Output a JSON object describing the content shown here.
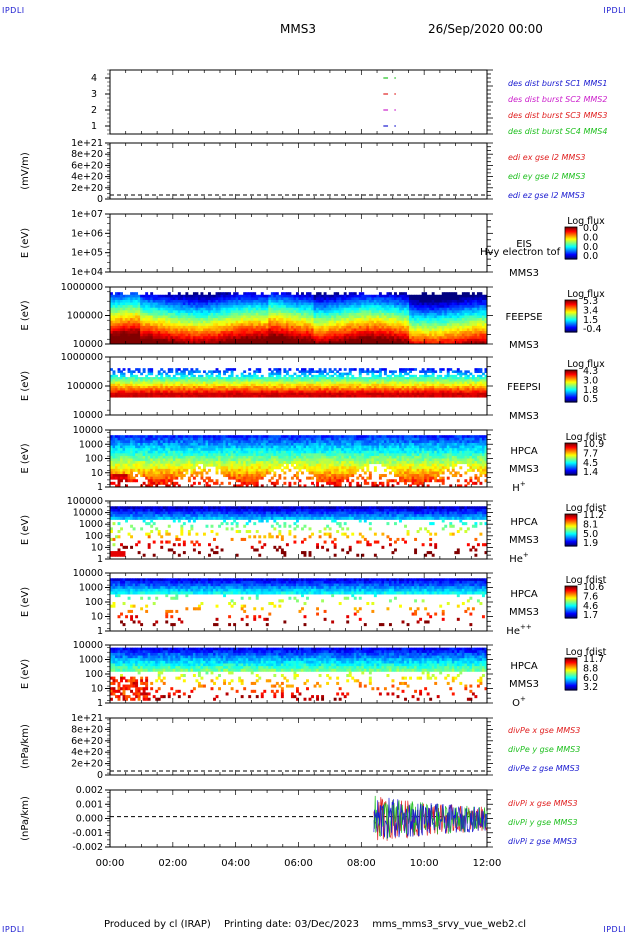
{
  "corner_marks": {
    "top_left": "IPDLI",
    "top_right": "IPDLI",
    "bottom_left": "IPDLI",
    "bottom_right": "IPDLI"
  },
  "header": {
    "mission": "MMS3",
    "date": "26/Sep/2020 00:00"
  },
  "footer": {
    "producer": "Produced by cl (IRAP)",
    "printing": "Printing date: 03/Dec/2023",
    "file": "mms_mms3_srvy_vue_web2.cl"
  },
  "x_axis": {
    "range_hours": [
      0,
      12
    ],
    "ticks": [
      "00:00",
      "02:00",
      "04:00",
      "06:00",
      "08:00",
      "10:00",
      "12:00"
    ]
  },
  "colors": {
    "mms1": "#1a1ad0",
    "mms2": "#cc22cc",
    "mms3": "#e02020",
    "mms4": "#20c020",
    "x": "#e02020",
    "y": "#20c020",
    "z": "#1a1ad0"
  },
  "chart_data": [
    {
      "type": "line",
      "id": "burst",
      "yticks": [
        "4",
        "3",
        "2",
        "1"
      ],
      "ylim": [
        0.5,
        4.5
      ],
      "legend": [
        "des dist burst SC1 MMS1",
        "des dist burst SC2 MMS2",
        "des dist burst SC3 MMS3",
        "des dist burst SC4 MMS4"
      ],
      "segments": [
        {
          "sc": 4,
          "x": [
            8.7,
            8.85
          ]
        },
        {
          "sc": 4,
          "x": [
            9.05,
            9.1
          ]
        },
        {
          "sc": 3,
          "x": [
            8.7,
            8.85
          ]
        },
        {
          "sc": 3,
          "x": [
            9.05,
            9.1
          ]
        },
        {
          "sc": 2,
          "x": [
            8.7,
            8.85
          ]
        },
        {
          "sc": 2,
          "x": [
            9.05,
            9.1
          ]
        },
        {
          "sc": 1,
          "x": [
            8.7,
            8.85
          ]
        },
        {
          "sc": 1,
          "x": [
            9.05,
            9.1
          ]
        }
      ]
    },
    {
      "type": "line",
      "id": "edi",
      "ylabel": "(mV/m)",
      "yticks": [
        "1e+21",
        "8e+20",
        "6e+20",
        "4e+20",
        "2e+20",
        "0"
      ],
      "ylim": [
        0,
        1e+21
      ],
      "legend": [
        "edi ex gse l2 MMS3",
        "edi ey gse l2 MMS3",
        "edi ez gse l2 MMS3"
      ],
      "zero_line": true
    },
    {
      "type": "heatmap",
      "id": "eis",
      "ylabel": "E (eV)",
      "yticks": [
        "1e+07",
        "1e+06",
        "1e+05",
        "1e+04"
      ],
      "labels": [
        "EIS",
        "MMS3"
      ],
      "overlay_text": "Hvy electron tof",
      "colorbar": {
        "title": "Log flux",
        "ticks": [
          "0.0",
          "0.0",
          "0.0",
          "0.0"
        ]
      },
      "empty": true
    },
    {
      "type": "heatmap",
      "id": "feepse",
      "ylabel": "E (eV)",
      "yticks": [
        "1000000",
        "100000",
        "10000"
      ],
      "labels": [
        "FEEPSE",
        "MMS3"
      ],
      "colorbar": {
        "title": "Log flux",
        "ticks": [
          "5.3",
          "3.4",
          "1.5",
          "-0.4"
        ]
      }
    },
    {
      "type": "heatmap",
      "id": "feepsi",
      "ylabel": "E (eV)",
      "yticks": [
        "1000000",
        "100000",
        "10000"
      ],
      "labels": [
        "FEEPSI",
        "MMS3"
      ],
      "colorbar": {
        "title": "Log flux",
        "ticks": [
          "4.3",
          "3.0",
          "1.8",
          "0.5"
        ]
      }
    },
    {
      "type": "heatmap",
      "id": "hpca_h",
      "ylabel": "E (eV)",
      "yticks": [
        "10000",
        "1000",
        "100",
        "10",
        "1"
      ],
      "labels": [
        "HPCA",
        "MMS3"
      ],
      "species": "H",
      "charge": "+",
      "colorbar": {
        "title": "Log fdist",
        "ticks": [
          "10.9",
          "7.7",
          "4.5",
          "1.4"
        ]
      }
    },
    {
      "type": "heatmap",
      "id": "hpca_he",
      "ylabel": "E (eV)",
      "yticks": [
        "100000",
        "10000",
        "1000",
        "100",
        "10",
        "1"
      ],
      "labels": [
        "HPCA",
        "MMS3"
      ],
      "species": "He",
      "charge": "+",
      "colorbar": {
        "title": "Log fdist",
        "ticks": [
          "11.2",
          "8.1",
          "5.0",
          "1.9"
        ]
      }
    },
    {
      "type": "heatmap",
      "id": "hpca_hepp",
      "ylabel": "E (eV)",
      "yticks": [
        "10000",
        "1000",
        "100",
        "10",
        "1"
      ],
      "labels": [
        "HPCA",
        "MMS3"
      ],
      "species": "He",
      "charge": "++",
      "colorbar": {
        "title": "Log fdist",
        "ticks": [
          "10.6",
          "7.6",
          "4.6",
          "1.7"
        ]
      }
    },
    {
      "type": "heatmap",
      "id": "hpca_o",
      "ylabel": "E (eV)",
      "yticks": [
        "10000",
        "1000",
        "100",
        "10",
        "1"
      ],
      "labels": [
        "HPCA",
        "MMS3"
      ],
      "species": "O",
      "charge": "+",
      "colorbar": {
        "title": "Log fdist",
        "ticks": [
          "11.7",
          "8.8",
          "6.0",
          "3.2"
        ]
      }
    },
    {
      "type": "line",
      "id": "divpe",
      "ylabel": "(nPa/km)",
      "yticks": [
        "1e+21",
        "8e+20",
        "6e+20",
        "4e+20",
        "2e+20",
        "0"
      ],
      "ylim": [
        0,
        1e+21
      ],
      "legend": [
        "divPe x gse MMS3",
        "divPe y gse MMS3",
        "divPe z gse MMS3"
      ],
      "zero_line": true
    },
    {
      "type": "line",
      "id": "divpi",
      "ylabel": "(nPa/km)",
      "yticks": [
        "0.002",
        "0.001",
        "0.000",
        "-0.001",
        "-0.002"
      ],
      "ylim": [
        -0.0025,
        0.0022
      ],
      "legend": [
        "divPi x gse MMS3",
        "divPi y gse MMS3",
        "divPi z gse MMS3"
      ],
      "zero_line": true,
      "data_start_hour": 8.4
    }
  ]
}
